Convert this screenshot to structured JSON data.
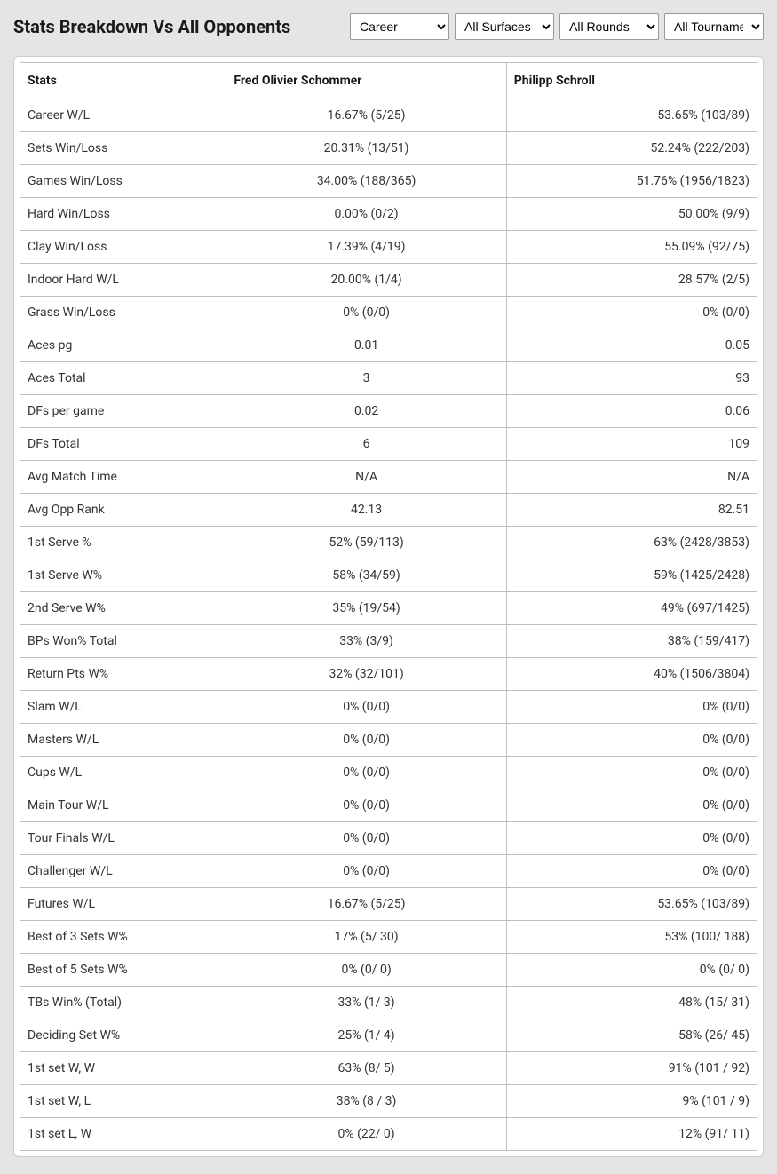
{
  "title": "Stats Breakdown Vs All Opponents",
  "filters": {
    "period": {
      "selected": "Career",
      "options": [
        "Career"
      ]
    },
    "surface": {
      "selected": "All Surfaces",
      "options": [
        "All Surfaces"
      ]
    },
    "rounds": {
      "selected": "All Rounds",
      "options": [
        "All Rounds"
      ]
    },
    "tournaments": {
      "selected": "All Tournaments",
      "options": [
        "All Tournaments"
      ]
    }
  },
  "columns": {
    "stat": "Stats",
    "player1": "Fred Olivier Schommer",
    "player2": "Philipp Schroll"
  },
  "rows": [
    {
      "stat": "Career W/L",
      "p1": "16.67% (5/25)",
      "p2": "53.65% (103/89)"
    },
    {
      "stat": "Sets Win/Loss",
      "p1": "20.31% (13/51)",
      "p2": "52.24% (222/203)"
    },
    {
      "stat": "Games Win/Loss",
      "p1": "34.00% (188/365)",
      "p2": "51.76% (1956/1823)"
    },
    {
      "stat": "Hard Win/Loss",
      "p1": "0.00% (0/2)",
      "p2": "50.00% (9/9)"
    },
    {
      "stat": "Clay Win/Loss",
      "p1": "17.39% (4/19)",
      "p2": "55.09% (92/75)"
    },
    {
      "stat": "Indoor Hard W/L",
      "p1": "20.00% (1/4)",
      "p2": "28.57% (2/5)"
    },
    {
      "stat": "Grass Win/Loss",
      "p1": "0% (0/0)",
      "p2": "0% (0/0)"
    },
    {
      "stat": "Aces pg",
      "p1": "0.01",
      "p2": "0.05"
    },
    {
      "stat": "Aces Total",
      "p1": "3",
      "p2": "93"
    },
    {
      "stat": "DFs per game",
      "p1": "0.02",
      "p2": "0.06"
    },
    {
      "stat": "DFs Total",
      "p1": "6",
      "p2": "109"
    },
    {
      "stat": "Avg Match Time",
      "p1": "N/A",
      "p2": "N/A"
    },
    {
      "stat": "Avg Opp Rank",
      "p1": "42.13",
      "p2": "82.51"
    },
    {
      "stat": "1st Serve %",
      "p1": "52% (59/113)",
      "p2": "63% (2428/3853)"
    },
    {
      "stat": "1st Serve W%",
      "p1": "58% (34/59)",
      "p2": "59% (1425/2428)"
    },
    {
      "stat": "2nd Serve W%",
      "p1": "35% (19/54)",
      "p2": "49% (697/1425)"
    },
    {
      "stat": "BPs Won% Total",
      "p1": "33% (3/9)",
      "p2": "38% (159/417)"
    },
    {
      "stat": "Return Pts W%",
      "p1": "32% (32/101)",
      "p2": "40% (1506/3804)"
    },
    {
      "stat": "Slam W/L",
      "p1": "0% (0/0)",
      "p2": "0% (0/0)"
    },
    {
      "stat": "Masters W/L",
      "p1": "0% (0/0)",
      "p2": "0% (0/0)"
    },
    {
      "stat": "Cups W/L",
      "p1": "0% (0/0)",
      "p2": "0% (0/0)"
    },
    {
      "stat": "Main Tour W/L",
      "p1": "0% (0/0)",
      "p2": "0% (0/0)"
    },
    {
      "stat": "Tour Finals W/L",
      "p1": "0% (0/0)",
      "p2": "0% (0/0)"
    },
    {
      "stat": "Challenger W/L",
      "p1": "0% (0/0)",
      "p2": "0% (0/0)"
    },
    {
      "stat": "Futures W/L",
      "p1": "16.67% (5/25)",
      "p2": "53.65% (103/89)"
    },
    {
      "stat": "Best of 3 Sets W%",
      "p1": "17% (5/ 30)",
      "p2": "53% (100/ 188)"
    },
    {
      "stat": "Best of 5 Sets W%",
      "p1": "0% (0/ 0)",
      "p2": "0% (0/ 0)"
    },
    {
      "stat": "TBs Win% (Total)",
      "p1": "33% (1/ 3)",
      "p2": "48% (15/ 31)"
    },
    {
      "stat": "Deciding Set W%",
      "p1": "25% (1/ 4)",
      "p2": "58% (26/ 45)"
    },
    {
      "stat": "1st set W, W",
      "p1": "63% (8/ 5)",
      "p2": "91% (101 / 92)"
    },
    {
      "stat": "1st set W, L",
      "p1": "38% (8 / 3)",
      "p2": "9% (101 / 9)"
    },
    {
      "stat": "1st set L, W",
      "p1": "0% (22/ 0)",
      "p2": "12% (91/ 11)"
    }
  ],
  "colors": {
    "page_bg": "#e5e5e5",
    "card_bg": "#ffffff",
    "border": "#bfbfbf",
    "text": "#333333",
    "header_text": "#1a1a1a"
  }
}
